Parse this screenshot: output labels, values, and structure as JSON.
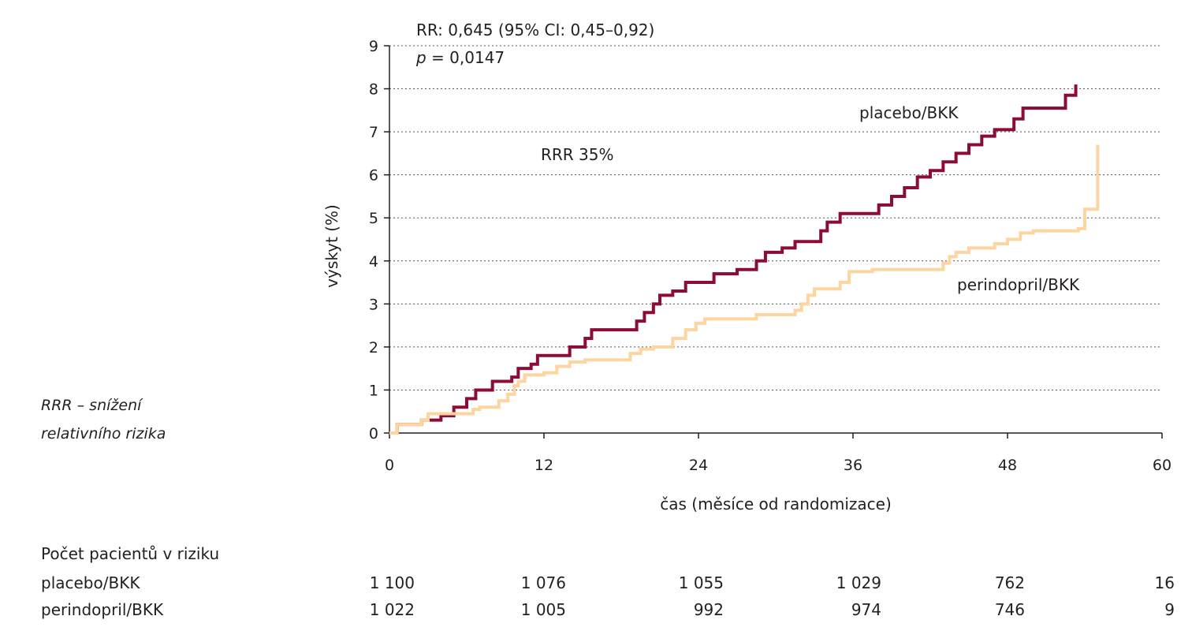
{
  "chart_data": {
    "type": "line",
    "title": "",
    "xlabel": "čas (měsíce od randomizace)",
    "ylabel": "výskyt (%)",
    "xlim": [
      0,
      60
    ],
    "ylim": [
      0,
      9
    ],
    "x_ticks": [
      "0",
      "12",
      "24",
      "36",
      "48",
      "60"
    ],
    "y_ticks": [
      "0",
      "1",
      "2",
      "3",
      "4",
      "5",
      "6",
      "7",
      "8",
      "9"
    ],
    "grid": "horizontal dotted",
    "annotations": {
      "rr": "RR: 0,645 (95% CI: 0,45–0,92)",
      "p_symbol": "p",
      "p_value": " = 0,0147",
      "rrr": "RRR 35%"
    },
    "series": [
      {
        "name": "placebo/BKK",
        "color": "#8b0d35",
        "points": [
          [
            0,
            0
          ],
          [
            0.6,
            0.2
          ],
          [
            2,
            0.2
          ],
          [
            2.5,
            0.3
          ],
          [
            4,
            0.4
          ],
          [
            5,
            0.6
          ],
          [
            6,
            0.8
          ],
          [
            6.7,
            1.0
          ],
          [
            8,
            1.2
          ],
          [
            9.5,
            1.3
          ],
          [
            10,
            1.5
          ],
          [
            11,
            1.6
          ],
          [
            11.5,
            1.8
          ],
          [
            13,
            1.8
          ],
          [
            14,
            2.0
          ],
          [
            15.2,
            2.2
          ],
          [
            15.7,
            2.4
          ],
          [
            19.2,
            2.6
          ],
          [
            19.8,
            2.8
          ],
          [
            20.5,
            3.0
          ],
          [
            21,
            3.2
          ],
          [
            22,
            3.3
          ],
          [
            23,
            3.5
          ],
          [
            25.2,
            3.7
          ],
          [
            27,
            3.8
          ],
          [
            28.5,
            4.0
          ],
          [
            29.2,
            4.2
          ],
          [
            30.5,
            4.3
          ],
          [
            31.5,
            4.45
          ],
          [
            33.5,
            4.7
          ],
          [
            34,
            4.9
          ],
          [
            35,
            5.1
          ],
          [
            38,
            5.3
          ],
          [
            39,
            5.5
          ],
          [
            40,
            5.7
          ],
          [
            41,
            5.95
          ],
          [
            42,
            6.1
          ],
          [
            43,
            6.3
          ],
          [
            44,
            6.5
          ],
          [
            45,
            6.7
          ],
          [
            46,
            6.9
          ],
          [
            47,
            7.05
          ],
          [
            48.5,
            7.3
          ],
          [
            49.2,
            7.55
          ],
          [
            52.5,
            7.85
          ],
          [
            53.3,
            8.1
          ]
        ]
      },
      {
        "name": "perindopril/BKK",
        "color": "#fcd5a0",
        "points": [
          [
            0,
            0
          ],
          [
            0.6,
            0.2
          ],
          [
            2.5,
            0.3
          ],
          [
            3,
            0.45
          ],
          [
            6.5,
            0.55
          ],
          [
            7,
            0.6
          ],
          [
            8.5,
            0.75
          ],
          [
            9.2,
            0.9
          ],
          [
            9.7,
            1.1
          ],
          [
            10,
            1.2
          ],
          [
            10.5,
            1.35
          ],
          [
            12,
            1.4
          ],
          [
            13,
            1.55
          ],
          [
            14,
            1.65
          ],
          [
            15.2,
            1.7
          ],
          [
            18.7,
            1.85
          ],
          [
            19.5,
            1.95
          ],
          [
            20.5,
            2.0
          ],
          [
            22,
            2.2
          ],
          [
            23,
            2.4
          ],
          [
            23.8,
            2.55
          ],
          [
            24.5,
            2.65
          ],
          [
            28.5,
            2.75
          ],
          [
            31.5,
            2.85
          ],
          [
            32,
            3.0
          ],
          [
            32.5,
            3.2
          ],
          [
            33,
            3.35
          ],
          [
            35,
            3.5
          ],
          [
            35.7,
            3.75
          ],
          [
            37.5,
            3.8
          ],
          [
            43,
            3.95
          ],
          [
            43.5,
            4.1
          ],
          [
            44,
            4.2
          ],
          [
            45,
            4.3
          ],
          [
            47,
            4.4
          ],
          [
            48,
            4.5
          ],
          [
            49,
            4.65
          ],
          [
            50,
            4.7
          ],
          [
            53.5,
            4.75
          ],
          [
            54,
            5.2
          ],
          [
            55,
            6.7
          ]
        ]
      }
    ],
    "risk_table": {
      "header": "Počet pacientů v riziku",
      "rows": [
        {
          "label": "placebo/BKK",
          "values": [
            "1 100",
            "1 076",
            "1 055",
            "1 029",
            "762",
            "16"
          ]
        },
        {
          "label": "perindopril/BKK",
          "values": [
            "1 022",
            "1 005",
            "992",
            "974",
            "746",
            "9"
          ]
        }
      ]
    }
  },
  "note": {
    "line1": "RRR – snížení",
    "line2": "relativního rizika"
  }
}
